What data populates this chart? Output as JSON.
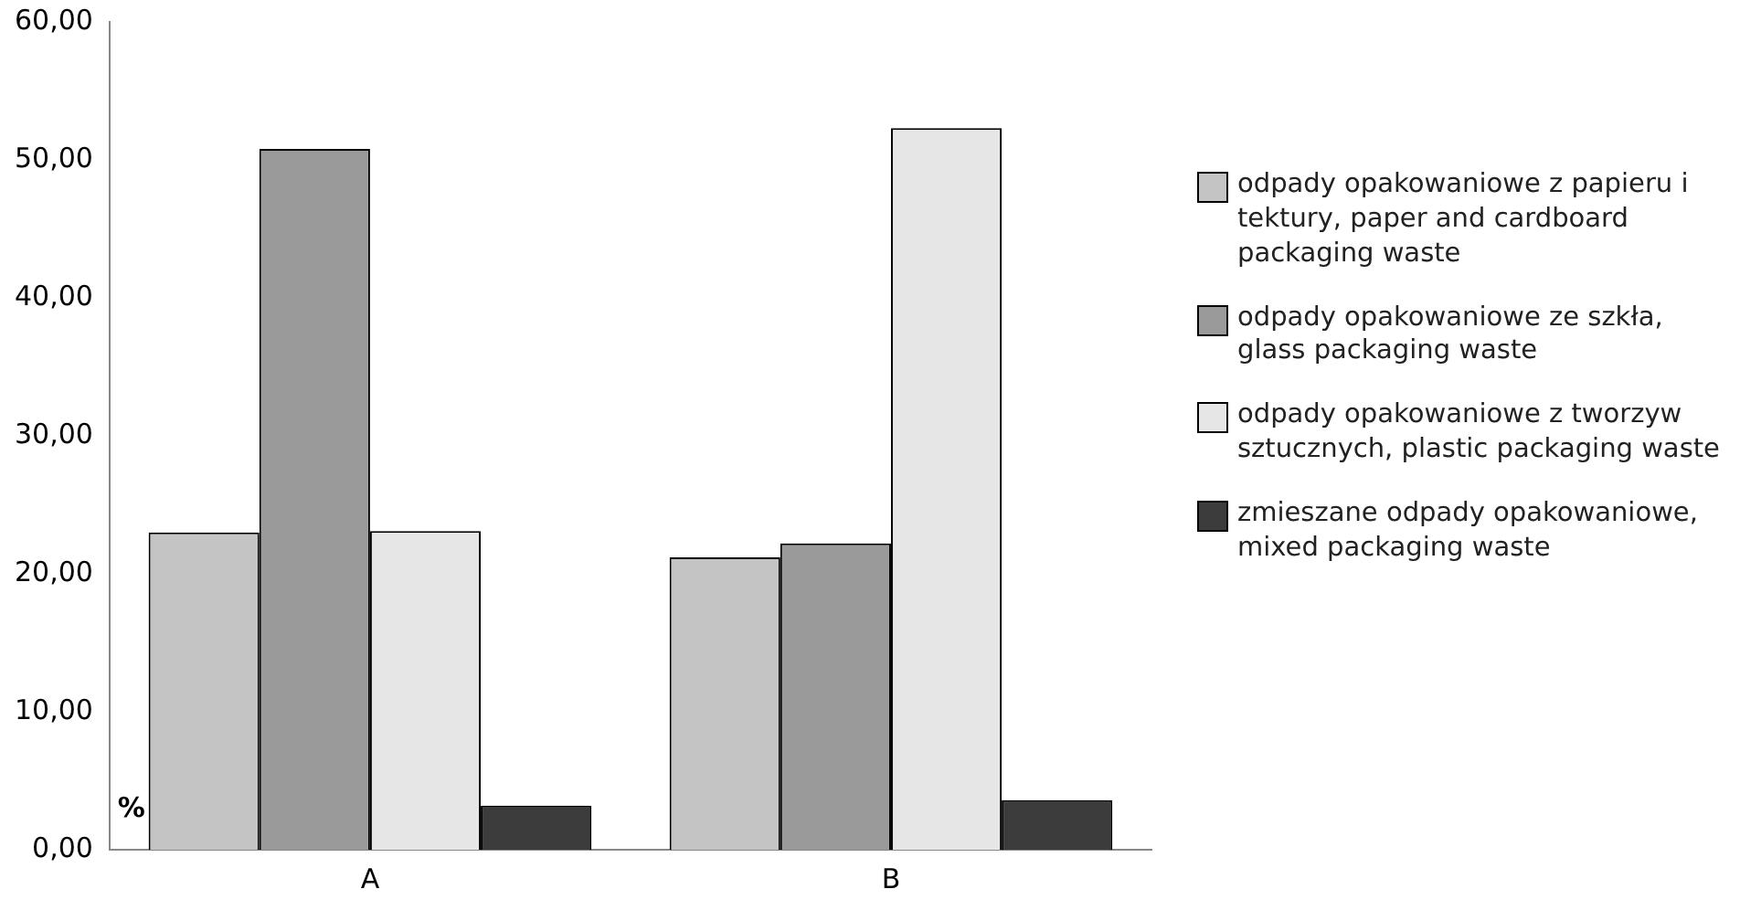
{
  "chart_data": {
    "type": "bar",
    "ylabel": "%",
    "categories": [
      "A",
      "B"
    ],
    "series": [
      {
        "name": "odpady opakowaniowe z papieru i tektury, paper and cardboard packaging waste",
        "color": "#c4c4c4",
        "values": [
          23.0,
          21.2
        ]
      },
      {
        "name": "odpady opakowaniowe ze szkła, glass packaging waste",
        "color": "#9a9a9a",
        "values": [
          50.8,
          22.2
        ]
      },
      {
        "name": "odpady opakowaniowe z tworzyw sztucznych, plastic packaging waste",
        "color": "#e6e6e6",
        "values": [
          23.1,
          52.3
        ]
      },
      {
        "name": "zmieszane odpady opakowaniowe,  mixed packaging waste",
        "color": "#3c3c3c",
        "values": [
          3.2,
          3.6
        ]
      }
    ],
    "ylim": [
      0,
      60
    ],
    "yticks": [
      {
        "value": 0,
        "label": "0,00"
      },
      {
        "value": 10,
        "label": "10,00"
      },
      {
        "value": 20,
        "label": "20,00"
      },
      {
        "value": 30,
        "label": "30,00"
      },
      {
        "value": 40,
        "label": "40,00"
      },
      {
        "value": 50,
        "label": "50,00"
      },
      {
        "value": 60,
        "label": "60,00"
      }
    ],
    "grid": false,
    "legend": "right"
  }
}
